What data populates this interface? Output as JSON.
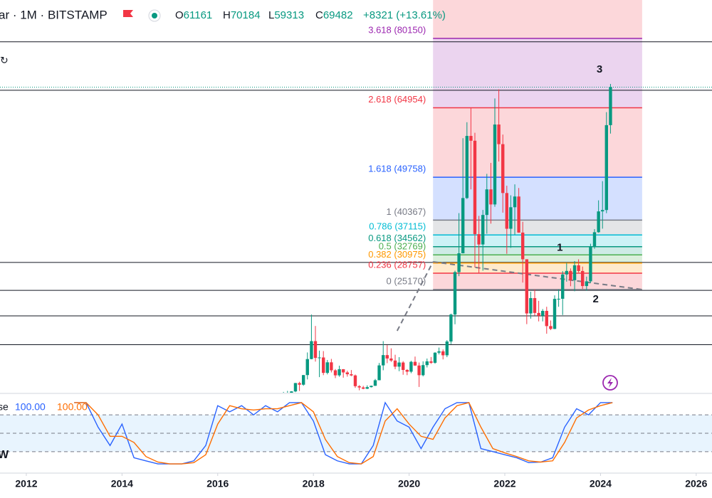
{
  "header": {
    "symbol": "ar · 1M · BITSTAMP",
    "ohlc": [
      {
        "key": "O",
        "value": 61161
      },
      {
        "key": "H",
        "value": 70184
      },
      {
        "key": "L",
        "value": 59313
      },
      {
        "key": "C",
        "value": 69482
      }
    ],
    "change": "+8321 (+13.61%)"
  },
  "indicator": {
    "name": "se",
    "k_value": "100.00",
    "d_value": "100.00",
    "side_label": "W"
  },
  "chart_data": [
    {
      "type": "candlestick",
      "xlim": [
        2011.45,
        2026.33
      ],
      "ylim": [
        2588,
        88556
      ],
      "up_color": "#089981",
      "down_color": "#f23645",
      "x": [
        2017,
        2017.083,
        2017.167,
        2017.25,
        2017.333,
        2017.417,
        2017.5,
        2017.583,
        2017.667,
        2017.75,
        2017.833,
        2017.917,
        2018,
        2018.083,
        2018.167,
        2018.25,
        2018.333,
        2018.417,
        2018.5,
        2018.583,
        2018.667,
        2018.75,
        2018.833,
        2018.917,
        2019,
        2019.083,
        2019.167,
        2019.25,
        2019.333,
        2019.417,
        2019.5,
        2019.583,
        2019.667,
        2019.75,
        2019.833,
        2019.917,
        2020,
        2020.083,
        2020.167,
        2020.25,
        2020.333,
        2020.417,
        2020.5,
        2020.583,
        2020.667,
        2020.75,
        2020.833,
        2020.917,
        2021,
        2021.083,
        2021.167,
        2021.25,
        2021.333,
        2021.417,
        2021.5,
        2021.583,
        2021.667,
        2021.75,
        2021.833,
        2021.917,
        2022,
        2022.083,
        2022.167,
        2022.25,
        2022.333,
        2022.417,
        2022.5,
        2022.583,
        2022.667,
        2022.75,
        2022.833,
        2022.917,
        2023,
        2023.083,
        2023.167,
        2023.25,
        2023.333,
        2023.417,
        2023.5,
        2023.583,
        2023.667,
        2023.75,
        2023.833,
        2023.917,
        2024,
        2024.083,
        2024.167
      ],
      "open": [
        960,
        970,
        1190,
        1080,
        1350,
        2300,
        2480,
        2870,
        4700,
        4340,
        6450,
        9950,
        13880,
        10200,
        10300,
        6930,
        9240,
        7490,
        6390,
        7730,
        7030,
        6630,
        6370,
        4020,
        3740,
        3460,
        3810,
        4100,
        5320,
        8570,
        10820,
        10080,
        9630,
        8290,
        9200,
        7570,
        7190,
        9350,
        8540,
        6420,
        8630,
        9450,
        9140,
        11350,
        11650,
        10780,
        13800,
        19700,
        28990,
        33110,
        45200,
        58800,
        57750,
        37300,
        35040,
        41500,
        47100,
        43800,
        61300,
        57000,
        46300,
        38480,
        43190,
        45540,
        37640,
        31800,
        19940,
        23300,
        20050,
        19430,
        20500,
        17170,
        16550,
        23130,
        23150,
        28480,
        29250,
        27220,
        30480,
        29230,
        25940,
        26970,
        34660,
        37720,
        42280,
        42580,
        61161
      ],
      "high": [
        1190,
        1200,
        1280,
        1350,
        2760,
        2980,
        2920,
        4740,
        4980,
        6470,
        11400,
        19700,
        17200,
        11800,
        11700,
        9760,
        9990,
        7770,
        8500,
        7760,
        7400,
        7550,
        6570,
        4240,
        4080,
        4200,
        4140,
        5600,
        9100,
        13880,
        13000,
        12300,
        10900,
        10370,
        9500,
        7750,
        9580,
        10500,
        9190,
        9460,
        10070,
        10400,
        11450,
        12470,
        12050,
        14100,
        19900,
        29300,
        41900,
        58300,
        61800,
        64900,
        59500,
        41300,
        42600,
        50500,
        52900,
        67000,
        69000,
        59100,
        47900,
        45800,
        48200,
        47400,
        40000,
        31800,
        24700,
        25200,
        22700,
        20900,
        21400,
        18400,
        23900,
        25200,
        29200,
        31000,
        29800,
        31400,
        31800,
        30200,
        28000,
        35200,
        38400,
        44700,
        48900,
        64000,
        70184
      ],
      "low": [
        750,
        920,
        890,
        1060,
        1350,
        2100,
        1830,
        2700,
        2970,
        4110,
        5500,
        9900,
        9400,
        6000,
        6430,
        6600,
        7030,
        5780,
        6080,
        5880,
        6110,
        6200,
        3650,
        3120,
        3350,
        3380,
        3730,
        4070,
        5300,
        7500,
        9050,
        9330,
        7730,
        7300,
        6520,
        6430,
        6860,
        8450,
        3850,
        6170,
        8120,
        8900,
        8930,
        10970,
        9880,
        10370,
        13220,
        17570,
        28100,
        33100,
        45000,
        47100,
        30000,
        28800,
        29300,
        37400,
        39600,
        43300,
        53200,
        42000,
        33000,
        34300,
        37200,
        37600,
        26700,
        17600,
        18800,
        19500,
        18200,
        18200,
        15500,
        16300,
        16500,
        21400,
        19600,
        26900,
        25900,
        24800,
        28900,
        25300,
        24900,
        26600,
        34100,
        37600,
        38500,
        41900,
        59313
      ],
      "close": [
        970,
        1190,
        1080,
        1350,
        2300,
        2480,
        2870,
        4700,
        4340,
        6450,
        9950,
        13880,
        10200,
        10300,
        6930,
        9240,
        7490,
        6390,
        7730,
        7030,
        6630,
        6370,
        4020,
        3740,
        3460,
        3810,
        4100,
        5320,
        8570,
        10820,
        10080,
        9630,
        8290,
        9200,
        7570,
        7190,
        9350,
        8540,
        6420,
        8630,
        9450,
        9140,
        11350,
        11650,
        10780,
        13800,
        19700,
        28990,
        33110,
        45200,
        58800,
        57750,
        37300,
        35040,
        41500,
        47100,
        43800,
        61300,
        57000,
        46300,
        38480,
        43190,
        45540,
        37640,
        31800,
        19940,
        23300,
        20050,
        19430,
        20500,
        17170,
        16550,
        23130,
        23150,
        28480,
        29250,
        27220,
        30480,
        29230,
        25940,
        26970,
        34660,
        37720,
        42280,
        42580,
        61161,
        69482
      ],
      "price_line_color": "#089981",
      "hlines": [
        79400,
        68800,
        31100,
        25000,
        19400,
        13100
      ],
      "fib": {
        "x": [
          2020.5,
          2024.87
        ],
        "above_fill": "rgba(242,54,69,0.2)",
        "levels": [
          {
            "value": 80150,
            "label": "3.618 (80150)",
            "color": "#9c27b0",
            "fill": "rgba(156,39,176,0.2)"
          },
          {
            "value": 64954,
            "label": "2.618 (64954)",
            "color": "#f23645",
            "fill": "rgba(242,54,69,0.2)"
          },
          {
            "value": 49758,
            "label": "1.618 (49758)",
            "color": "#2962ff",
            "fill": "rgba(41,98,255,0.2)"
          },
          {
            "value": 40367,
            "label": "1 (40367)",
            "color": "#787b86",
            "fill": "rgba(120,123,134,0.2)"
          },
          {
            "value": 37115,
            "label": "0.786 (37115)",
            "color": "#00bcd4",
            "fill": "rgba(0,188,212,0.2)"
          },
          {
            "value": 34562,
            "label": "0.618 (34562)",
            "color": "#089981",
            "fill": "rgba(8,153,129,0.2)"
          },
          {
            "value": 32769,
            "label": "0.5 (32769)",
            "color": "#4caf50",
            "fill": "rgba(76,175,80,0.2)"
          },
          {
            "value": 30975,
            "label": "0.382 (30975)",
            "color": "#ff9800",
            "fill": "rgba(255,152,0,0.2)"
          },
          {
            "value": 28757,
            "label": "0.236 (28757)",
            "color": "#f23645",
            "fill": "rgba(242,54,69,0.2)"
          },
          {
            "value": 25170,
            "label": "0 (25170)",
            "color": "#787b86"
          }
        ]
      },
      "trendlines": [
        {
          "x": [
            2019.75,
            2020.5
          ],
          "y": [
            16137,
            31244
          ]
        },
        {
          "x": [
            2020.5,
            2024.87
          ],
          "y": [
            31244,
            25170
          ]
        }
      ],
      "annotations": [
        {
          "text": "1",
          "x": 2023.15,
          "y": 34260
        },
        {
          "text": "2",
          "x": 2023.9,
          "y": 22990
        },
        {
          "text": "3",
          "x": 2023.98,
          "y": 73290
        }
      ]
    },
    {
      "type": "line",
      "xlim": [
        2011.45,
        2026.33
      ],
      "ylim": [
        -15,
        115
      ],
      "xticks": [
        2012,
        2014,
        2016,
        2018,
        2020,
        2022,
        2024,
        2026
      ],
      "levels": [
        20,
        50,
        80
      ],
      "band": [
        20,
        80
      ],
      "x": [
        2013,
        2013.25,
        2013.5,
        2013.75,
        2014,
        2014.25,
        2014.5,
        2014.75,
        2015,
        2015.25,
        2015.5,
        2015.75,
        2016,
        2016.25,
        2016.5,
        2016.75,
        2017,
        2017.25,
        2017.5,
        2017.75,
        2018,
        2018.25,
        2018.5,
        2018.75,
        2019,
        2019.25,
        2019.5,
        2019.75,
        2020,
        2020.25,
        2020.5,
        2020.75,
        2021,
        2021.25,
        2021.5,
        2021.75,
        2022,
        2022.25,
        2022.5,
        2022.75,
        2023,
        2023.25,
        2023.5,
        2023.75,
        2024,
        2024.25
      ],
      "series": [
        {
          "color": "#2962ff",
          "values": [
            100,
            100,
            60,
            30,
            65,
            10,
            5,
            0,
            0,
            0,
            5,
            30,
            95,
            85,
            95,
            80,
            95,
            85,
            100,
            100,
            70,
            15,
            5,
            0,
            0,
            30,
            100,
            70,
            60,
            25,
            60,
            90,
            100,
            100,
            25,
            20,
            15,
            10,
            2,
            3,
            10,
            60,
            90,
            80,
            100,
            100
          ]
        },
        {
          "color": "#ff6d00",
          "values": [
            100,
            100,
            80,
            45,
            45,
            35,
            12,
            3,
            0,
            0,
            2,
            15,
            65,
            95,
            90,
            88,
            90,
            90,
            95,
            100,
            85,
            40,
            12,
            2,
            0,
            12,
            70,
            90,
            65,
            45,
            40,
            75,
            95,
            100,
            60,
            25,
            18,
            12,
            5,
            3,
            5,
            35,
            75,
            88,
            95,
            100
          ]
        }
      ]
    }
  ]
}
